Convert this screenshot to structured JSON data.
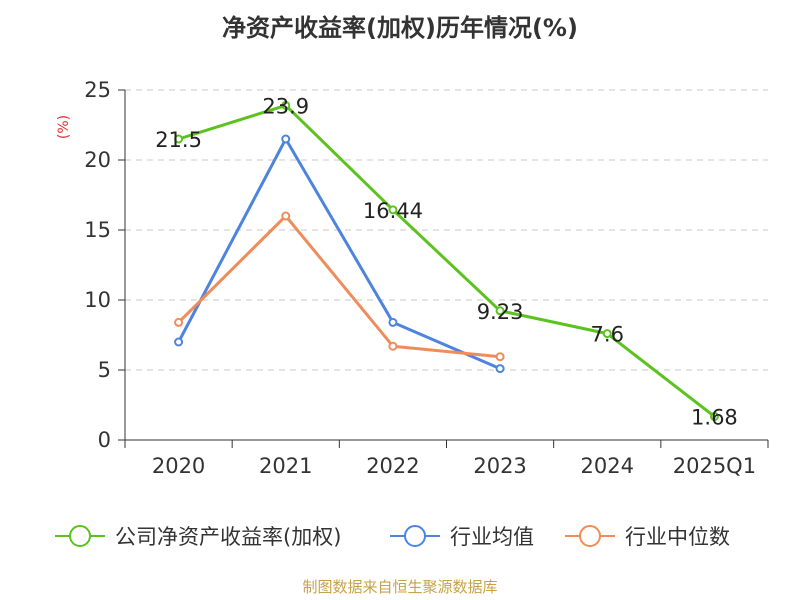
{
  "chart_data": {
    "type": "line",
    "title": "净资产收益率(加权)历年情况(%)",
    "ylabel": "(%)",
    "categories": [
      "2020",
      "2021",
      "2022",
      "2023",
      "2024",
      "2025Q1"
    ],
    "yticks": [
      "0",
      "5",
      "10",
      "15",
      "20",
      "25"
    ],
    "ylim": [
      0,
      25
    ],
    "grid": true,
    "legend_position": "bottom",
    "series": [
      {
        "name": "公司净资产收益率(加权)",
        "color": "#5cc21e",
        "values": [
          21.5,
          23.9,
          16.44,
          9.23,
          7.6,
          1.68
        ],
        "labels": [
          "21.5",
          "23.9",
          "16.44",
          "9.23",
          "7.6",
          "1.68"
        ]
      },
      {
        "name": "行业均值",
        "color": "#4f84de",
        "values": [
          7.0,
          21.5,
          8.4,
          5.1,
          null,
          null
        ]
      },
      {
        "name": "行业中位数",
        "color": "#f08c5a",
        "values": [
          8.4,
          16.0,
          6.7,
          5.95,
          null,
          null
        ]
      }
    ],
    "source": "制图数据来自恒生聚源数据库"
  }
}
